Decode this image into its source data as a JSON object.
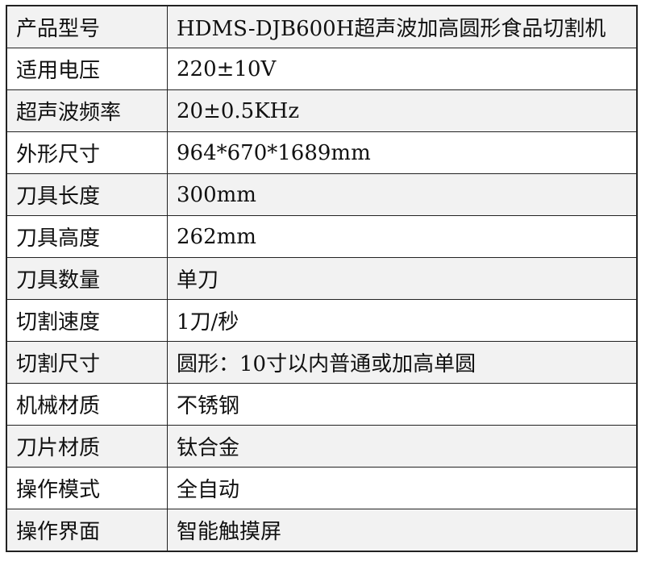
{
  "rows": [
    {
      "label": "产品型号",
      "value": "HDMS-DJB600H超声波加高圆形食品切割机"
    },
    {
      "label": "适用电压",
      "value": "220±10V"
    },
    {
      "label": "超声波频率",
      "value": "20±0.5KHz"
    },
    {
      "label": "外形尺寸",
      "value": "964*670*1689mm"
    },
    {
      "label": "刀具长度",
      "value": "300mm"
    },
    {
      "label": "刀具高度",
      "value": "262mm"
    },
    {
      "label": "刀具数量",
      "value": "单刀"
    },
    {
      "label": "切割速度",
      "value": "1刀/秒"
    },
    {
      "label": "切割尺寸",
      "value": "圆形：10寸以内普通或加高单圆"
    },
    {
      "label": "机械材质",
      "value": "不锈钢"
    },
    {
      "label": "刀片材质",
      "value": "钛合金"
    },
    {
      "label": "操作模式",
      "value": "全自动"
    },
    {
      "label": "操作界面",
      "value": "智能触摸屏"
    }
  ]
}
